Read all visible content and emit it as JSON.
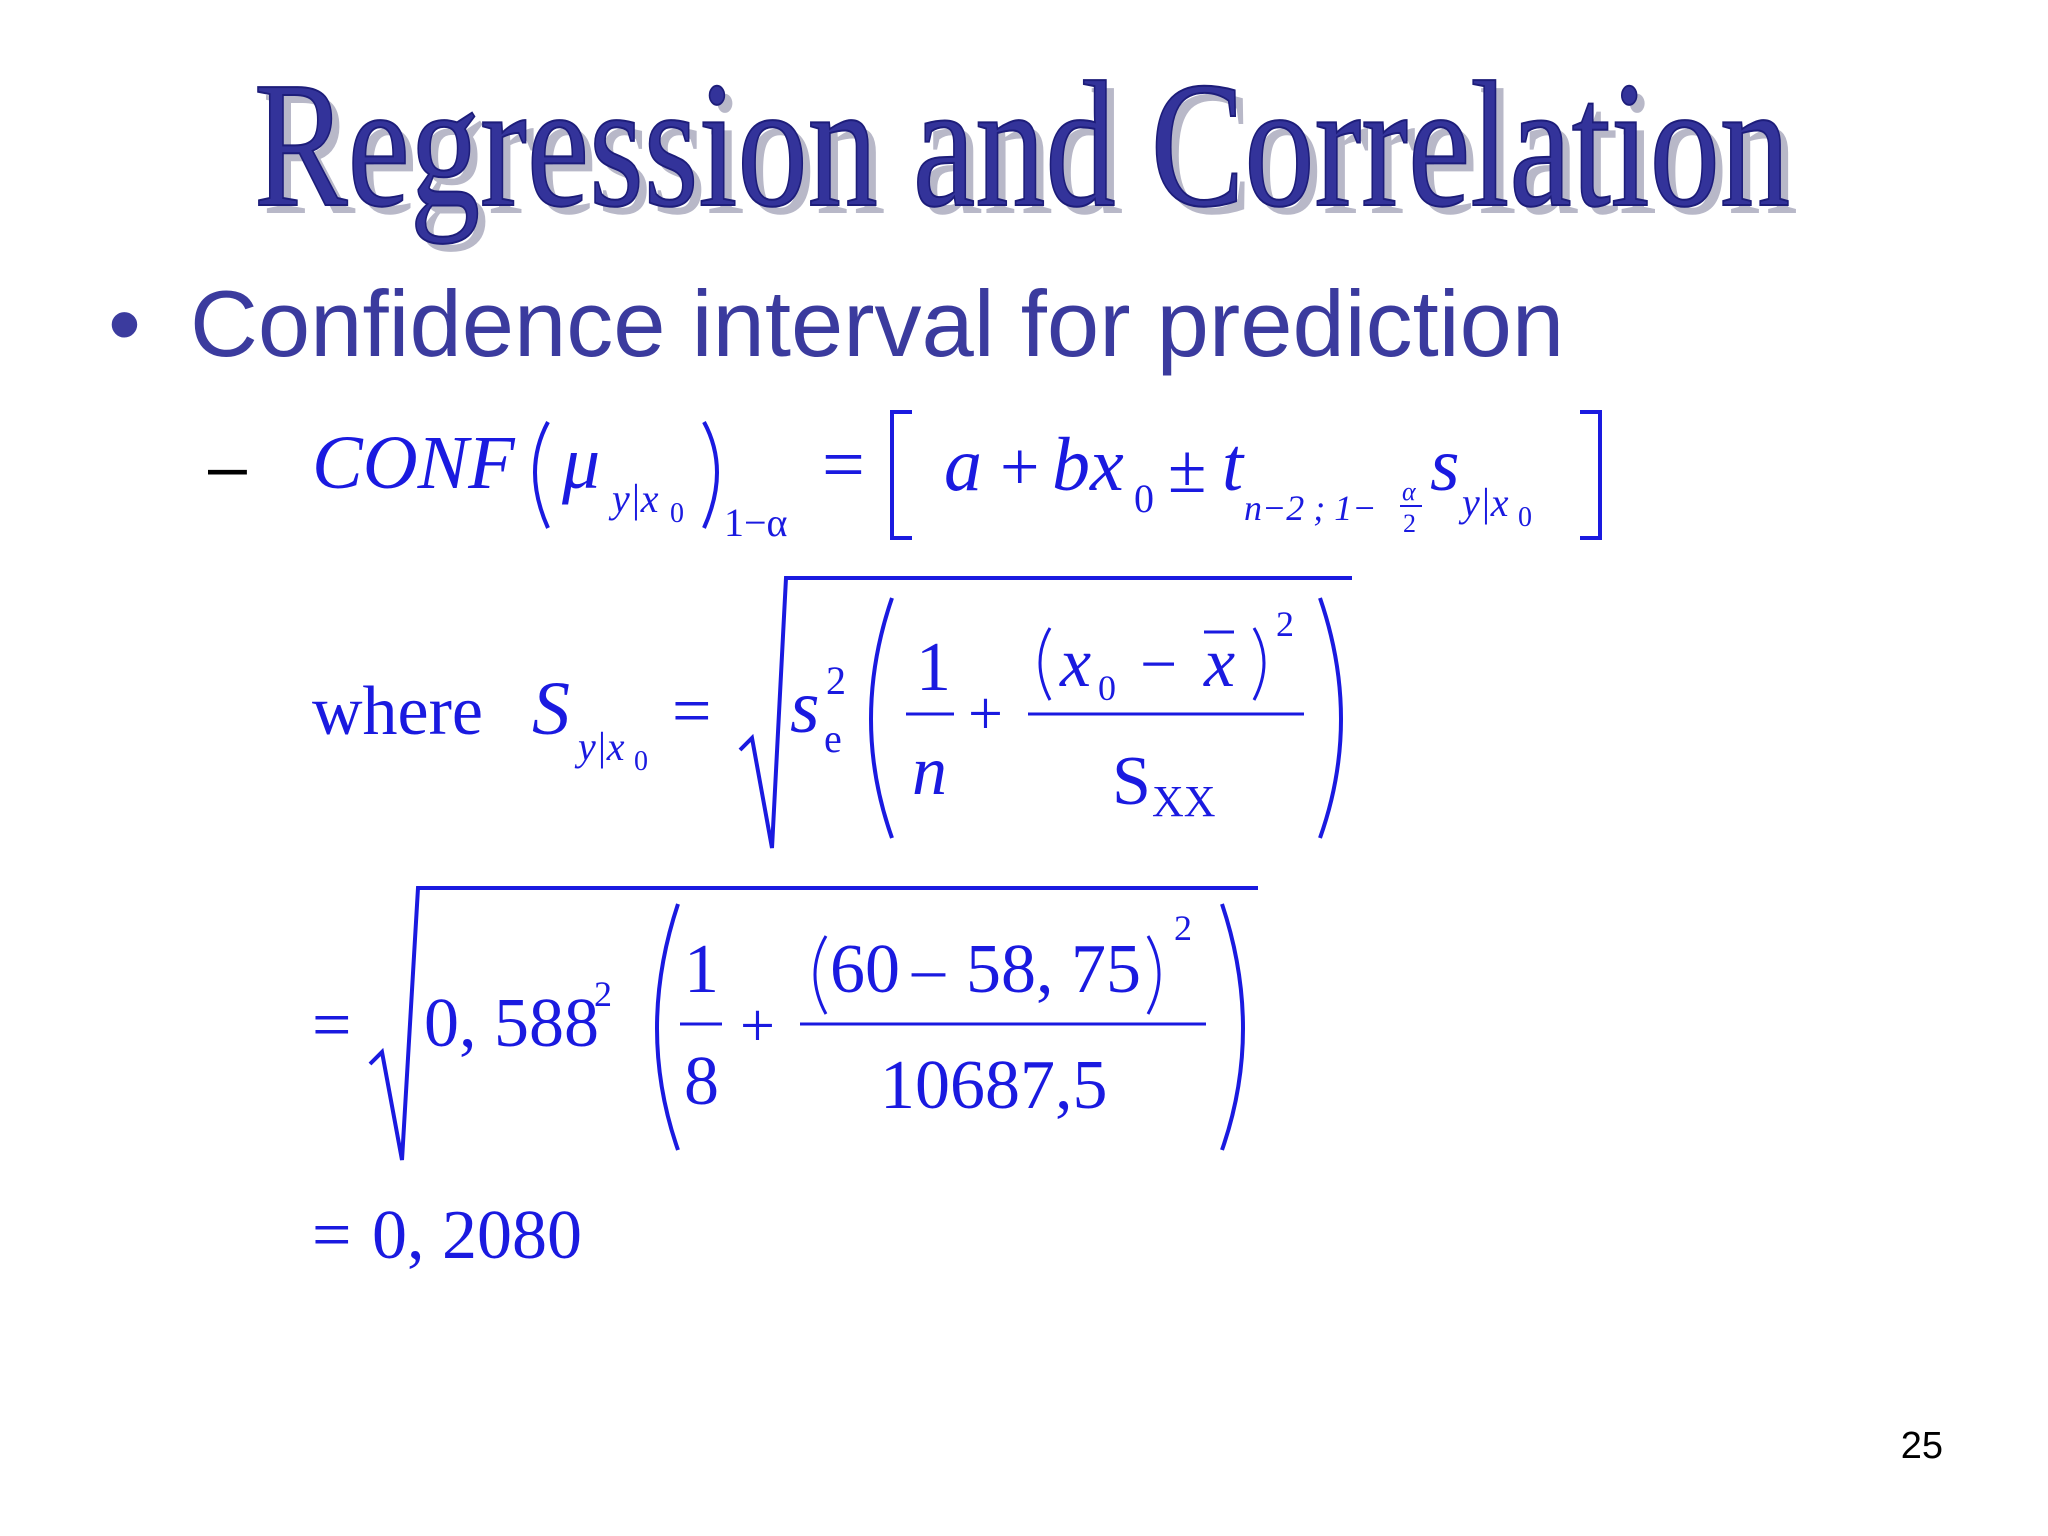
{
  "slide": {
    "title": "Regression and Correlation",
    "bullet": "Confidence interval for prediction",
    "dash": "–",
    "page_number": "25",
    "colors": {
      "title": "#33339a",
      "title_shadow": "#b8b8c8",
      "bullet": "#3b3b9e",
      "formula": "#1a1ae0"
    }
  },
  "formula": {
    "conf": "CONF",
    "mu": "μ",
    "sub_yx0": "y|x",
    "zero": "0",
    "one_minus_alpha": "1−α",
    "equals": "=",
    "a": "a",
    "plus": "+",
    "bx": "bx",
    "pm": "±",
    "t": "t",
    "t_sub": "n−2 ; 1−",
    "alpha": "α",
    "two": "2",
    "s": "s",
    "where": "where",
    "S": "S",
    "se_base": "s",
    "se_sub": "e",
    "one": "1",
    "n": "n",
    "x": "x",
    "minus": "−",
    "xbar": "x",
    "sxx_s": "S",
    "sxx_sub": "XX",
    "num_0588": "0, 588",
    "num_8": "8",
    "num_60": "60",
    "num_en_minus": "–",
    "num_5875": "58, 75",
    "num_denom": "10687,5",
    "result": "0, 2080"
  }
}
